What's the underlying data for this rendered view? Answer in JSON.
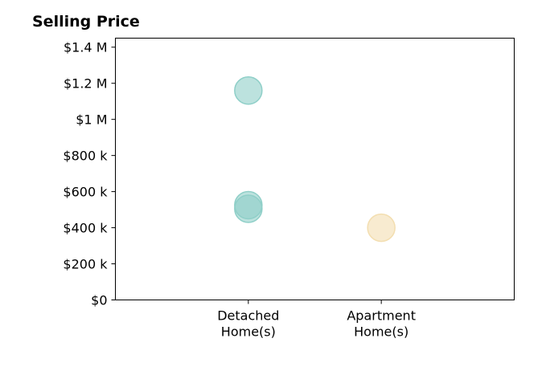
{
  "chart_data": {
    "type": "scatter",
    "title": "Selling Price",
    "xlabel": "",
    "ylabel": "",
    "categories": [
      "Detached\nHome(s)",
      "Apartment\nHome(s)"
    ],
    "y_ticks": [
      "$0",
      "$200 k",
      "$400 k",
      "$600 k",
      "$800 k",
      "$1 M",
      "$1.2 M",
      "$1.4 M"
    ],
    "ylim": [
      0,
      1450000
    ],
    "grid": false,
    "points": [
      {
        "category": "Detached\nHome(s)",
        "y": 1160000,
        "color": "#8fcfc8"
      },
      {
        "category": "Detached\nHome(s)",
        "y": 525000,
        "color": "#8fcfc8"
      },
      {
        "category": "Detached\nHome(s)",
        "y": 505000,
        "color": "#8fcfc8"
      },
      {
        "category": "Apartment\nHome(s)",
        "y": 400000,
        "color": "#f3deb0"
      }
    ]
  }
}
